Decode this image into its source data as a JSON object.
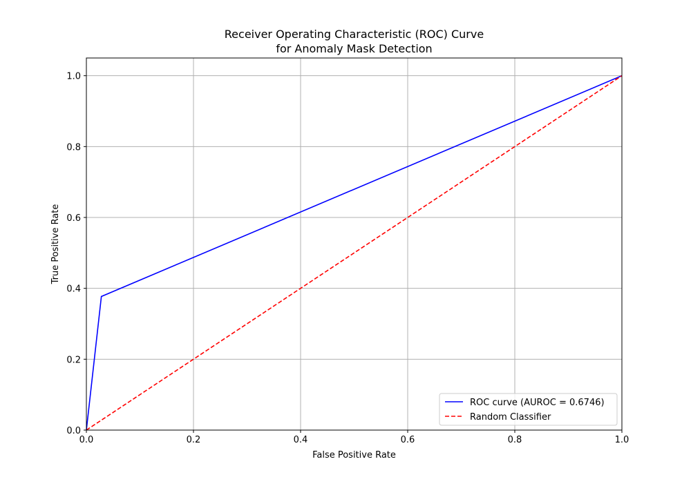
{
  "chart_data": {
    "type": "line",
    "title_lines": [
      "Receiver Operating Characteristic (ROC) Curve",
      "for Anomaly Mask Detection"
    ],
    "xlabel": "False Positive Rate",
    "ylabel": "True Positive Rate",
    "xlim": [
      0.0,
      1.0
    ],
    "ylim": [
      0.0,
      1.05
    ],
    "x_ticks": [
      0.0,
      0.2,
      0.4,
      0.6,
      0.8,
      1.0
    ],
    "x_tick_labels": [
      "0.0",
      "0.2",
      "0.4",
      "0.6",
      "0.8",
      "1.0"
    ],
    "y_ticks": [
      0.0,
      0.2,
      0.4,
      0.6,
      0.8,
      1.0
    ],
    "y_tick_labels": [
      "0.0",
      "0.2",
      "0.4",
      "0.6",
      "0.8",
      "1.0"
    ],
    "grid": true,
    "legend_position": "lower-right",
    "series": [
      {
        "name": "ROC curve (AUROC = 0.6746)",
        "color": "#0000ff",
        "style": "solid",
        "x": [
          0.0,
          0.028,
          1.0
        ],
        "y": [
          0.0,
          0.377,
          1.0
        ]
      },
      {
        "name": "Random Classifier",
        "color": "#ff0000",
        "style": "dashed",
        "x": [
          0.0,
          1.0
        ],
        "y": [
          0.0,
          1.0
        ]
      }
    ]
  }
}
